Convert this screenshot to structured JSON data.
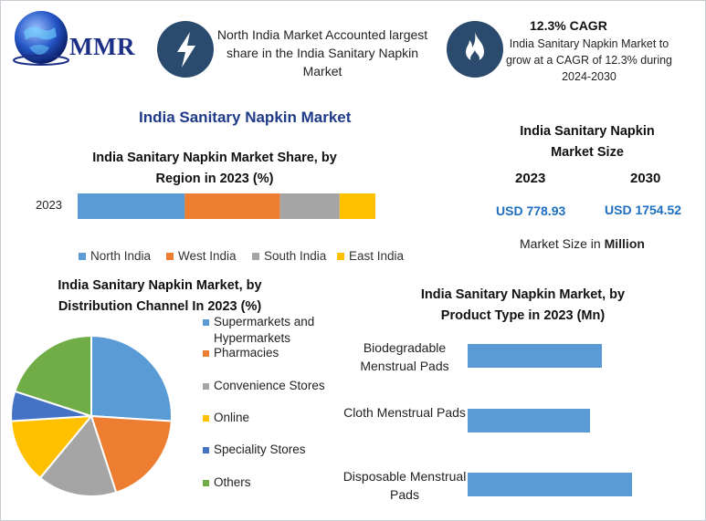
{
  "logo": {
    "text": "MMR"
  },
  "header": {
    "north_india_text": "North India Market Accounted largest share in the India Sanitary Napkin Market",
    "cagr_title": "12.3% CAGR",
    "cagr_text": "India Sanitary Napkin Market to grow at a CAGR of 12.3% during 2024-2030",
    "icons": [
      "lightning-icon",
      "flame-icon"
    ]
  },
  "main_title": "India Sanitary Napkin Market",
  "market_size": {
    "title": "India Sanitary Napkin Market Size",
    "year_1": "2023",
    "year_2": "2030",
    "value_1": "USD 778.93",
    "value_2": "USD 1754.52",
    "unit_prefix": "Market Size in ",
    "unit_bold": "Million"
  },
  "chart_data": [
    {
      "type": "bar",
      "orientation": "horizontal-stacked",
      "title": "India Sanitary Napkin Market Share, by Region in 2023 (%)",
      "categories": [
        "2023"
      ],
      "series": [
        {
          "name": "North India",
          "values": [
            36
          ],
          "color": "#5b9bd5"
        },
        {
          "name": "West India",
          "values": [
            32
          ],
          "color": "#ed7d31"
        },
        {
          "name": "South India",
          "values": [
            20
          ],
          "color": "#a5a5a5"
        },
        {
          "name": "East India",
          "values": [
            12
          ],
          "color": "#ffc000"
        }
      ],
      "legend": "bottom"
    },
    {
      "type": "pie",
      "title": "India Sanitary Napkin Market, by Distribution Channel In 2023 (%)",
      "labels": [
        "Supermarkets and Hypermarkets",
        "Pharmacies",
        "Convenience Stores",
        "Online",
        "Speciality Stores",
        "Others"
      ],
      "values": [
        26,
        19,
        16,
        13,
        6,
        20
      ],
      "colors": [
        "#5b9bd5",
        "#ed7d31",
        "#a5a5a5",
        "#ffc000",
        "#4472c4",
        "#70ad47"
      ],
      "legend": "right"
    },
    {
      "type": "bar",
      "orientation": "horizontal",
      "title": "India Sanitary Napkin Market, by Product Type in 2023 (Mn)",
      "categories": [
        "Biodegradable Menstrual Pads",
        "Cloth Menstrual Pads",
        "Disposable Menstrual Pads"
      ],
      "values": [
        147,
        134,
        180
      ],
      "color": "#5b9bd5"
    }
  ]
}
